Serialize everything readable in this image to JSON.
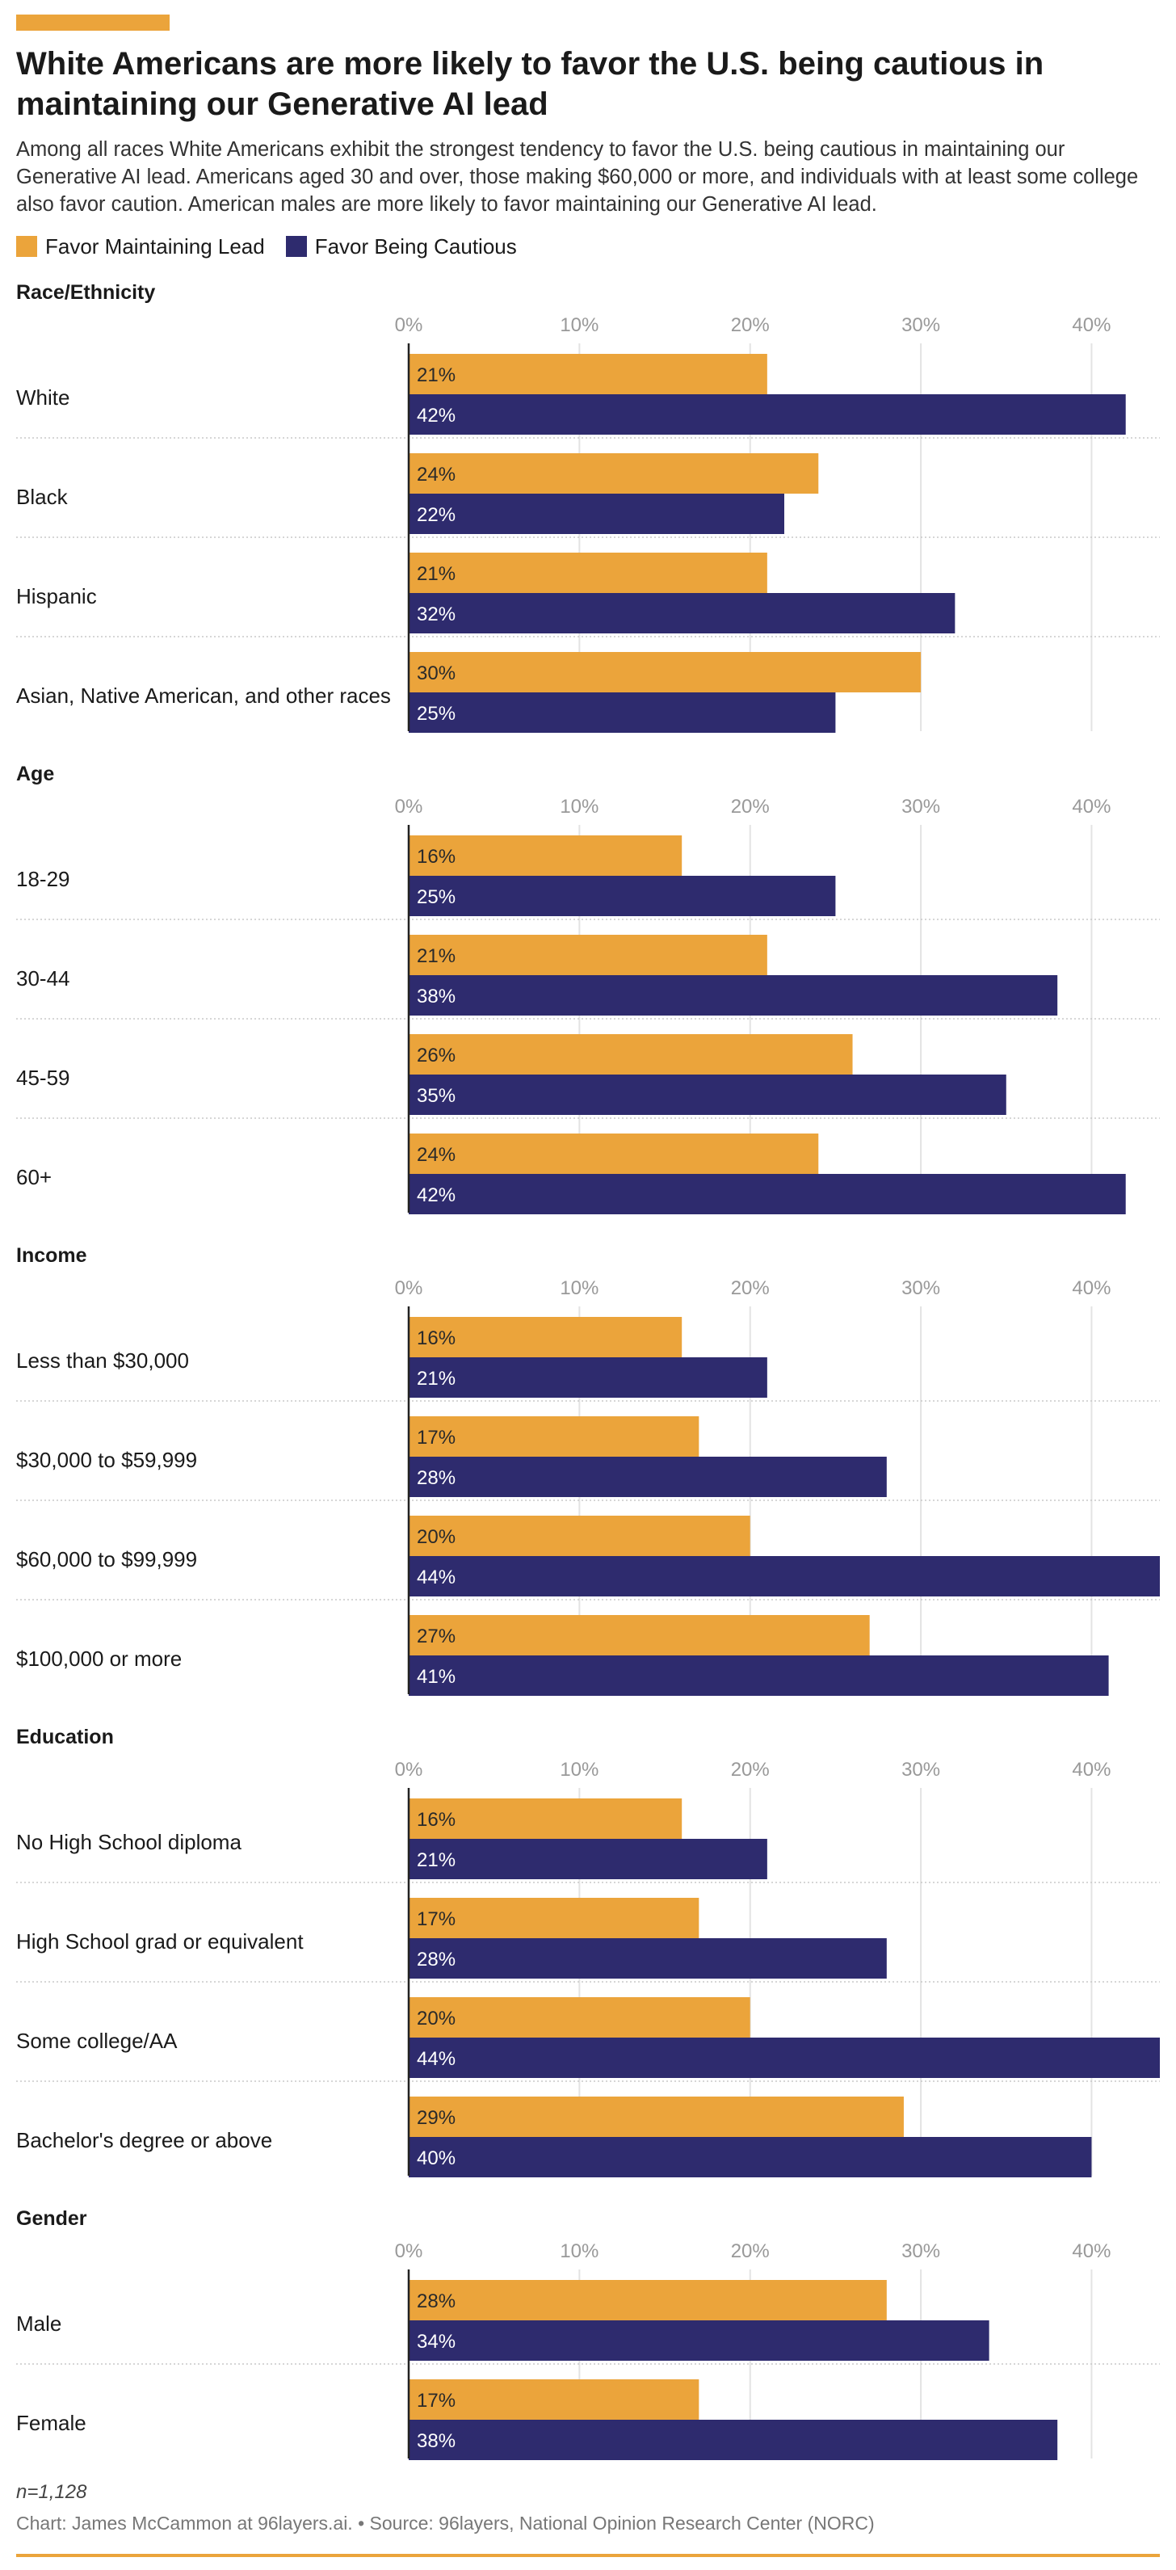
{
  "title": "White Americans are more likely to favor the U.S. being cautious in maintaining our Generative AI lead",
  "subtitle": "Among all races White Americans exhibit the strongest tendency to favor the U.S. being cautious in maintaining our Generative AI lead. Americans aged 30 and over, those making $60,000 or more, and individuals with at least some college also favor caution. American males are more likely to favor maintaining our Generative AI lead.",
  "colors": {
    "maintaining": "#eba43b",
    "cautious": "#2e2b6e",
    "gridline": "#e3e3e3",
    "separator": "#c8c8c8",
    "axis": "#222222",
    "tick_text": "#999999"
  },
  "footer": {
    "n": "n=1,128",
    "source": "Chart: James McCammon at 96layers.ai. • Source: 96layers, National Opinion Research Center (NORC)"
  },
  "chart_data": {
    "type": "bar",
    "orientation": "horizontal",
    "xlim": [
      0,
      44
    ],
    "x_ticks": [
      "0%",
      "10%",
      "20%",
      "30%",
      "40%"
    ],
    "grid": true,
    "legend_position": "top-left",
    "series": [
      {
        "name": "Favor Maintaining Lead",
        "color": "#eba43b"
      },
      {
        "name": "Favor Being Cautious",
        "color": "#2e2b6e"
      }
    ],
    "panels": [
      {
        "label": "Race/Ethnicity",
        "categories": [
          "White",
          "Black",
          "Hispanic",
          "Asian, Native American, and other races"
        ],
        "maintaining": [
          21,
          24,
          21,
          30
        ],
        "cautious": [
          42,
          22,
          32,
          25
        ]
      },
      {
        "label": "Age",
        "categories": [
          "18-29",
          "30-44",
          "45-59",
          "60+"
        ],
        "maintaining": [
          16,
          21,
          26,
          24
        ],
        "cautious": [
          25,
          38,
          35,
          42
        ]
      },
      {
        "label": "Income",
        "categories": [
          "Less than $30,000",
          "$30,000 to $59,999",
          "$60,000 to $99,999",
          "$100,000 or more"
        ],
        "maintaining": [
          16,
          17,
          20,
          27
        ],
        "cautious": [
          21,
          28,
          44,
          41
        ]
      },
      {
        "label": "Education",
        "categories": [
          "No High School diploma",
          "High School grad or equivalent",
          "Some college/AA",
          "Bachelor's degree or above"
        ],
        "maintaining": [
          16,
          17,
          20,
          29
        ],
        "cautious": [
          21,
          28,
          44,
          40
        ]
      },
      {
        "label": "Gender",
        "categories": [
          "Male",
          "Female"
        ],
        "maintaining": [
          28,
          17
        ],
        "cautious": [
          34,
          38
        ]
      }
    ]
  }
}
